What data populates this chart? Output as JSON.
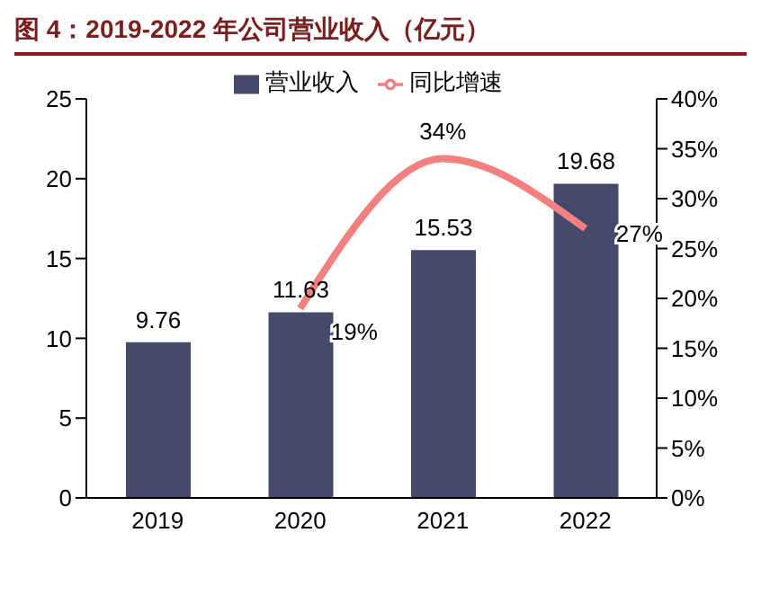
{
  "chart_data": {
    "type": "bar",
    "title": "图 4：2019-2022 年公司营业收入（亿元）",
    "categories": [
      "2019",
      "2020",
      "2021",
      "2022"
    ],
    "series": [
      {
        "name": "营业收入",
        "color": "#454a6c",
        "values": [
          9.76,
          11.63,
          15.53,
          19.68
        ],
        "value_labels": [
          "9.76",
          "11.63",
          "15.53",
          "19.68"
        ]
      },
      {
        "name": "同比增速",
        "type": "line",
        "axis": "y2",
        "color": "#f47f7f",
        "values": [
          null,
          19,
          34,
          27
        ],
        "value_labels": [
          null,
          "19%",
          "34%",
          "27%"
        ]
      }
    ],
    "ylim": [
      0,
      25
    ],
    "yticks": [
      0,
      5,
      10,
      15,
      20,
      25
    ],
    "y2lim": [
      0,
      40
    ],
    "y2ticks": [
      {
        "value": 0,
        "label": "0%"
      },
      {
        "value": 5,
        "label": "5%"
      },
      {
        "value": 10,
        "label": "10%"
      },
      {
        "value": 15,
        "label": "15%"
      },
      {
        "value": 20,
        "label": "20%"
      },
      {
        "value": 25,
        "label": "25%"
      },
      {
        "value": 30,
        "label": "30%"
      },
      {
        "value": 35,
        "label": "35%"
      },
      {
        "value": 40,
        "label": "40%"
      }
    ],
    "grid": false,
    "legend": "top",
    "marker": "none",
    "line_style": "solid"
  }
}
